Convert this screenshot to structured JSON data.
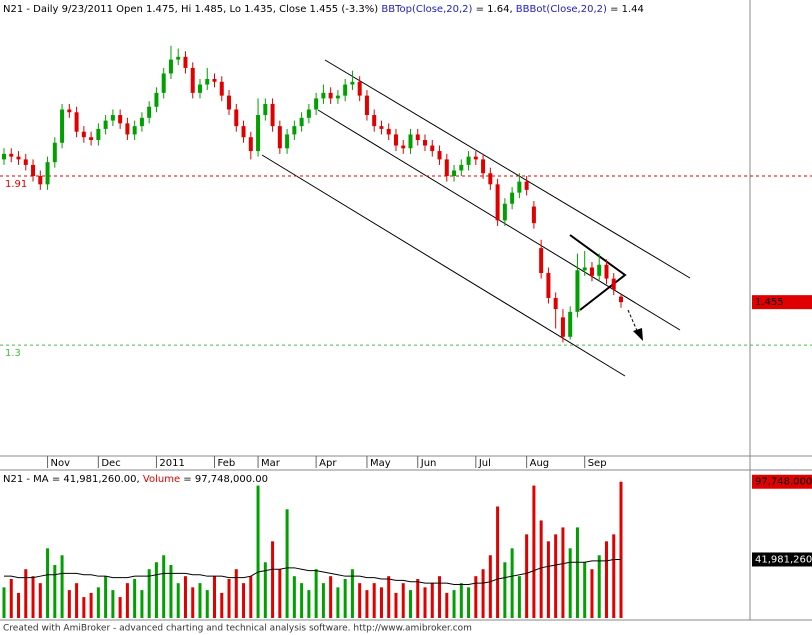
{
  "chart_data": {
    "type": "candlestick",
    "header_parts": [
      {
        "text": "N21 - Daily 9/23/2011 Open 1.475, Hi 1.485, Lo 1.435, Close 1.455 (-3.3%) ",
        "color": "#000000"
      },
      {
        "text": "BBTop(Close,20,2)",
        "color": "#2020c0"
      },
      {
        "text": " = 1.64, ",
        "color": "#000000"
      },
      {
        "text": "BBBot(Close,20,2)",
        "color": "#2020c0"
      },
      {
        "text": " = 1.44",
        "color": "#000000"
      }
    ],
    "volume_header_parts": [
      {
        "text": "N21 - MA = 41,981,260.00, ",
        "color": "#000000"
      },
      {
        "text": "Volume",
        "color": "#e00000"
      },
      {
        "text": " = 97,748,000.00",
        "color": "#000000"
      }
    ],
    "footer": "Created with AmiBroker - advanced charting and technical analysis software. http://www.amibroker.com",
    "categories": [
      null,
      null,
      null,
      null,
      null,
      null,
      "Nov",
      null,
      null,
      null,
      null,
      null,
      null,
      "Dec",
      null,
      null,
      null,
      null,
      null,
      null,
      null,
      "2011",
      null,
      null,
      null,
      null,
      null,
      null,
      null,
      "Feb",
      null,
      null,
      null,
      null,
      null,
      "Mar",
      null,
      null,
      null,
      null,
      null,
      null,
      null,
      "Apr",
      null,
      null,
      null,
      null,
      null,
      null,
      "May",
      null,
      null,
      null,
      null,
      null,
      null,
      "Jun",
      null,
      null,
      null,
      null,
      null,
      null,
      null,
      "Jul",
      null,
      null,
      null,
      null,
      null,
      null,
      "Aug",
      null,
      null,
      null,
      null,
      null,
      null,
      null,
      "Sep",
      null,
      null,
      null,
      null,
      null
    ],
    "open": [
      1.97,
      1.99,
      1.98,
      1.97,
      1.95,
      1.91,
      1.88,
      1.96,
      2.03,
      2.15,
      2.14,
      2.07,
      2.05,
      2.04,
      2.08,
      2.11,
      2.13,
      2.1,
      2.06,
      2.09,
      2.12,
      2.16,
      2.21,
      2.28,
      2.33,
      2.34,
      2.3,
      2.21,
      2.24,
      2.26,
      2.25,
      2.2,
      2.15,
      2.09,
      2.05,
      2.0,
      2.13,
      2.17,
      2.09,
      2.01,
      2.06,
      2.09,
      2.12,
      2.15,
      2.19,
      2.21,
      2.19,
      2.2,
      2.24,
      2.25,
      2.2,
      2.13,
      2.09,
      2.08,
      2.06,
      2.02,
      2.01,
      2.06,
      2.04,
      2.02,
      2.0,
      1.97,
      1.91,
      1.93,
      1.95,
      1.98,
      1.97,
      1.92,
      1.88,
      1.75,
      1.81,
      1.85,
      1.89,
      1.8,
      1.65,
      1.56,
      1.47,
      1.4,
      1.33,
      1.42,
      1.57,
      1.58,
      1.55,
      1.59,
      1.54,
      1.475
    ],
    "high": [
      2.01,
      2.01,
      2.0,
      1.99,
      1.97,
      1.93,
      1.98,
      2.05,
      2.17,
      2.17,
      2.16,
      2.09,
      2.07,
      2.1,
      2.13,
      2.15,
      2.15,
      2.12,
      2.11,
      2.14,
      2.18,
      2.23,
      2.3,
      2.38,
      2.37,
      2.36,
      2.32,
      2.26,
      2.3,
      2.28,
      2.27,
      2.22,
      2.17,
      2.11,
      2.07,
      2.19,
      2.19,
      2.19,
      2.11,
      2.08,
      2.11,
      2.14,
      2.17,
      2.21,
      2.24,
      2.23,
      2.22,
      2.26,
      2.29,
      2.27,
      2.22,
      2.15,
      2.11,
      2.1,
      2.08,
      2.04,
      2.08,
      2.08,
      2.06,
      2.04,
      2.02,
      1.99,
      1.95,
      1.97,
      2.0,
      2.0,
      1.99,
      1.94,
      1.9,
      1.83,
      1.87,
      1.92,
      1.91,
      1.82,
      1.68,
      1.58,
      1.49,
      1.43,
      1.44,
      1.63,
      1.64,
      1.6,
      1.63,
      1.61,
      1.56,
      1.485
    ],
    "low": [
      1.95,
      1.96,
      1.95,
      1.93,
      1.89,
      1.86,
      1.86,
      1.94,
      2.01,
      2.12,
      2.05,
      2.03,
      2.02,
      2.02,
      2.06,
      2.09,
      2.08,
      2.04,
      2.04,
      2.07,
      2.1,
      2.14,
      2.19,
      2.26,
      2.31,
      2.28,
      2.19,
      2.19,
      2.22,
      2.23,
      2.18,
      2.13,
      2.07,
      2.03,
      1.97,
      1.98,
      2.11,
      2.07,
      1.99,
      1.99,
      2.04,
      2.07,
      2.1,
      2.13,
      2.17,
      2.17,
      2.17,
      2.18,
      2.22,
      2.18,
      2.11,
      2.07,
      2.06,
      2.04,
      2.0,
      1.99,
      1.99,
      2.02,
      2.0,
      1.98,
      1.95,
      1.89,
      1.89,
      1.91,
      1.93,
      1.95,
      1.9,
      1.86,
      1.73,
      1.73,
      1.79,
      1.83,
      1.84,
      1.72,
      1.54,
      1.45,
      1.36,
      1.31,
      1.32,
      1.4,
      1.55,
      1.53,
      1.53,
      1.52,
      1.48,
      1.435
    ],
    "close": [
      1.99,
      1.98,
      1.97,
      1.95,
      1.91,
      1.88,
      1.96,
      2.03,
      2.15,
      2.14,
      2.07,
      2.05,
      2.04,
      2.08,
      2.11,
      2.13,
      2.1,
      2.06,
      2.09,
      2.12,
      2.16,
      2.21,
      2.28,
      2.33,
      2.34,
      2.3,
      2.21,
      2.24,
      2.26,
      2.25,
      2.2,
      2.15,
      2.09,
      2.05,
      2.0,
      2.13,
      2.17,
      2.09,
      2.01,
      2.06,
      2.09,
      2.12,
      2.15,
      2.19,
      2.21,
      2.19,
      2.2,
      2.24,
      2.25,
      2.2,
      2.13,
      2.09,
      2.08,
      2.06,
      2.02,
      2.01,
      2.06,
      2.04,
      2.02,
      2.0,
      1.97,
      1.91,
      1.93,
      1.95,
      1.98,
      1.97,
      1.92,
      1.88,
      1.75,
      1.81,
      1.85,
      1.89,
      1.86,
      1.74,
      1.56,
      1.47,
      1.43,
      1.33,
      1.42,
      1.57,
      1.58,
      1.55,
      1.59,
      1.54,
      1.5,
      1.455
    ],
    "volume": [
      22000000,
      28000000,
      18000000,
      35000000,
      30000000,
      25000000,
      50000000,
      38000000,
      45000000,
      20000000,
      25000000,
      15000000,
      18000000,
      22000000,
      30000000,
      20000000,
      15000000,
      25000000,
      28000000,
      20000000,
      35000000,
      40000000,
      45000000,
      38000000,
      25000000,
      30000000,
      22000000,
      25000000,
      20000000,
      30000000,
      18000000,
      28000000,
      35000000,
      25000000,
      30000000,
      95000000,
      40000000,
      55000000,
      35000000,
      78000000,
      30000000,
      25000000,
      20000000,
      35000000,
      25000000,
      30000000,
      22000000,
      28000000,
      35000000,
      25000000,
      20000000,
      25000000,
      22000000,
      30000000,
      18000000,
      25000000,
      20000000,
      28000000,
      22000000,
      25000000,
      30000000,
      18000000,
      20000000,
      25000000,
      22000000,
      30000000,
      35000000,
      45000000,
      80000000,
      40000000,
      50000000,
      30000000,
      60000000,
      95000000,
      70000000,
      55000000,
      60000000,
      65000000,
      50000000,
      65000000,
      40000000,
      35000000,
      45000000,
      55000000,
      60000000,
      97748000
    ],
    "ma": [
      30000000,
      30000000,
      29000000,
      29000000,
      29000000,
      30000000,
      31000000,
      31000000,
      32000000,
      32000000,
      32000000,
      31000000,
      31000000,
      30000000,
      30000000,
      29000000,
      29000000,
      29000000,
      30000000,
      30000000,
      30000000,
      31000000,
      32000000,
      32000000,
      32000000,
      32000000,
      31000000,
      31000000,
      30000000,
      30000000,
      30000000,
      29000000,
      29000000,
      29000000,
      30000000,
      33000000,
      34000000,
      35000000,
      35000000,
      36000000,
      36000000,
      35000000,
      34000000,
      34000000,
      33000000,
      32000000,
      31000000,
      30000000,
      30000000,
      30000000,
      29000000,
      29000000,
      28000000,
      28000000,
      27000000,
      27000000,
      26000000,
      26000000,
      25000000,
      25000000,
      25000000,
      25000000,
      24000000,
      24000000,
      24000000,
      25000000,
      25000000,
      26000000,
      28000000,
      29000000,
      30000000,
      31000000,
      32000000,
      34000000,
      36000000,
      37000000,
      38000000,
      39000000,
      40000000,
      40000000,
      40000000,
      41000000,
      41000000,
      41000000,
      42000000,
      41981260
    ],
    "volume_last_label": "97,748,000",
    "ma_last_label": "41,981,260",
    "up_color": "#00a000",
    "down_color": "#e00000",
    "ma_color": "#000000",
    "ylim": [
      0.9,
      2.545
    ],
    "volume_ylim": [
      0,
      99000000
    ],
    "hlines": [
      {
        "value": 1.91,
        "color": "#e00000"
      },
      {
        "value": 1.3,
        "color": "#40c040"
      }
    ]
  }
}
